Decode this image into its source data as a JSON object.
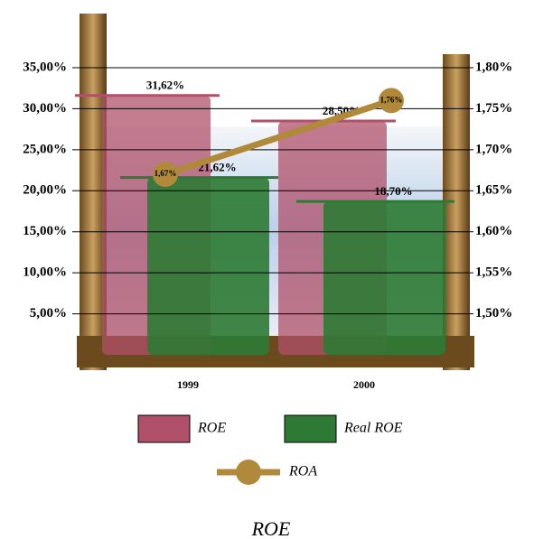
{
  "chart_data": {
    "type": "bar",
    "title": "ROE",
    "categories": [
      "1999",
      "2000"
    ],
    "series": [
      {
        "name": "ROE",
        "color": "#b0506a",
        "values": [
          31.62,
          28.5
        ],
        "value_labels": [
          "31,62%",
          "28,50%"
        ]
      },
      {
        "name": "Real ROE",
        "color": "#2e7a34",
        "values": [
          21.62,
          18.7
        ],
        "value_labels": [
          "21,62%",
          "18,70%"
        ]
      },
      {
        "name": "ROA",
        "type": "line",
        "axis": "y2",
        "color": "#b08a3a",
        "values": [
          1.67,
          1.76
        ],
        "value_labels": [
          "1,67%",
          "1,76%"
        ]
      }
    ],
    "ylim": [
      0,
      35
    ],
    "yticks": [
      {
        "value": 5,
        "label": "5,00%"
      },
      {
        "value": 10,
        "label": "10,00%"
      },
      {
        "value": 15,
        "label": "15,00%"
      },
      {
        "value": 20,
        "label": "20,00%"
      },
      {
        "value": 25,
        "label": "25,00%"
      },
      {
        "value": 30,
        "label": "30,00%"
      },
      {
        "value": 35,
        "label": "35,00%"
      }
    ],
    "y2lim": [
      1.45,
      1.8
    ],
    "y2ticks": [
      {
        "value": 1.5,
        "label": "1,50%"
      },
      {
        "value": 1.55,
        "label": "1,55%"
      },
      {
        "value": 1.6,
        "label": "1,60%"
      },
      {
        "value": 1.65,
        "label": "1,65%"
      },
      {
        "value": 1.7,
        "label": "1,70%"
      },
      {
        "value": 1.75,
        "label": "1,75%"
      },
      {
        "value": 1.8,
        "label": "1,80%"
      }
    ],
    "grid": true
  }
}
